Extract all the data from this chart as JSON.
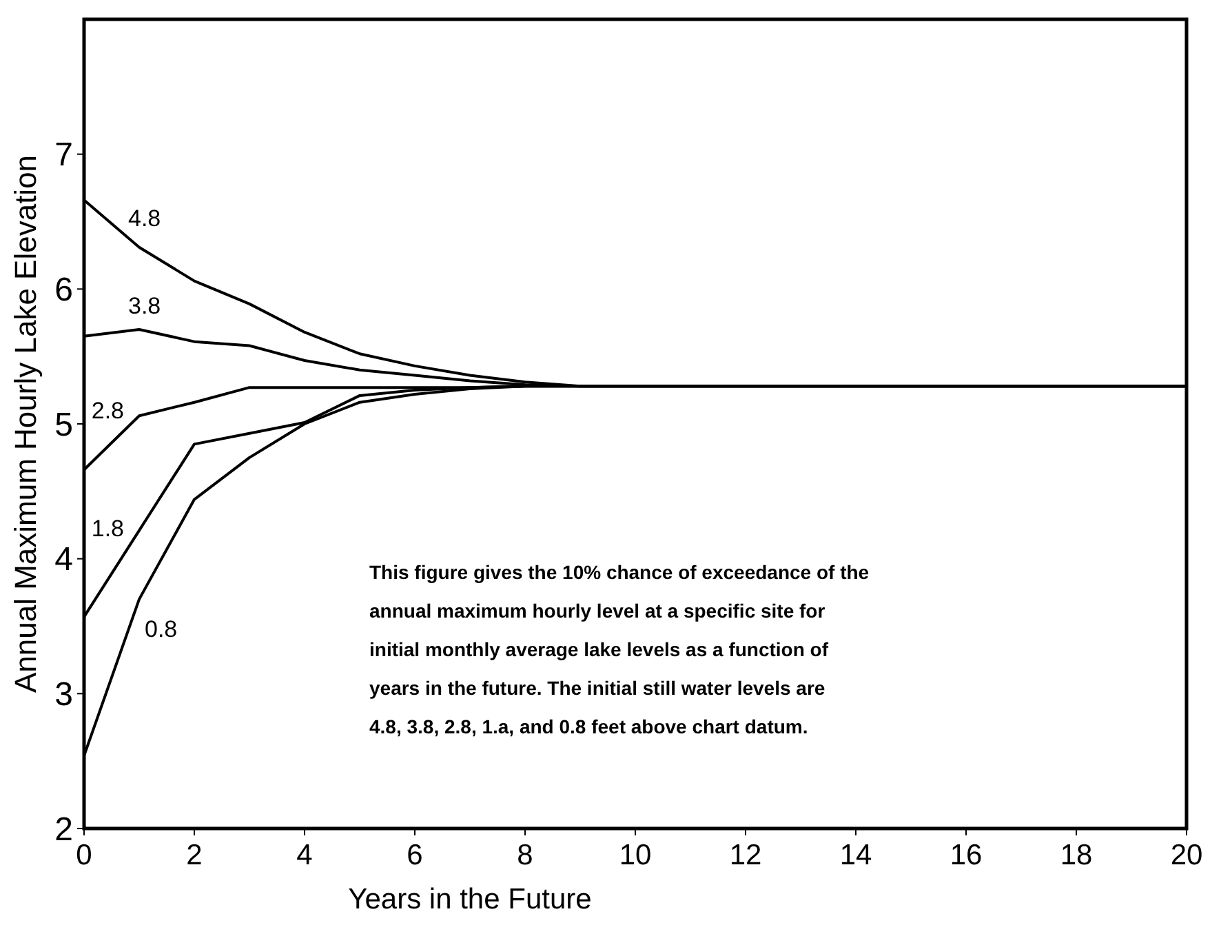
{
  "chart_data": {
    "type": "line",
    "xlabel": "Years in the Future",
    "ylabel": "Annual Maximum Hourly Lake Elevation",
    "x": [
      0,
      1,
      2,
      3,
      4,
      5,
      6,
      7,
      8,
      9,
      20
    ],
    "xlim": [
      0,
      20
    ],
    "xticks": [
      0,
      2,
      4,
      6,
      8,
      10,
      12,
      14,
      16,
      18,
      20
    ],
    "ylim": [
      2,
      8
    ],
    "yticks": [
      2,
      3,
      4,
      5,
      6,
      7
    ],
    "grid": false,
    "marker": "none",
    "line_style": "solid",
    "series": [
      {
        "name": "4.8",
        "color": "#000000",
        "values": [
          6.66,
          6.31,
          6.06,
          5.89,
          5.68,
          5.52,
          5.43,
          5.36,
          5.31,
          5.28,
          5.28
        ]
      },
      {
        "name": "3.8",
        "color": "#000000",
        "values": [
          5.65,
          5.7,
          5.61,
          5.58,
          5.47,
          5.4,
          5.36,
          5.32,
          5.29,
          5.28,
          5.28
        ]
      },
      {
        "name": "2.8",
        "color": "#000000",
        "values": [
          4.66,
          5.06,
          5.16,
          5.27,
          5.27,
          5.27,
          5.27,
          5.27,
          5.28,
          5.28,
          5.28
        ]
      },
      {
        "name": "1.8",
        "color": "#000000",
        "values": [
          3.57,
          4.21,
          4.85,
          4.93,
          5.01,
          5.21,
          5.25,
          5.27,
          5.28,
          5.28,
          5.28
        ]
      },
      {
        "name": "0.8",
        "color": "#000000",
        "values": [
          2.54,
          3.7,
          4.44,
          4.75,
          5.0,
          5.16,
          5.22,
          5.26,
          5.28,
          5.28,
          5.28
        ]
      }
    ],
    "annotations": [
      "This figure gives the 10% chance of exceedance of the annual maximum hourly level at a specific site for initial monthly average lake levels as a function of years in the future. The initial still water levels are 4.8, 3.8, 2.8, 1.a, and 0.8 feet above chart datum."
    ]
  }
}
